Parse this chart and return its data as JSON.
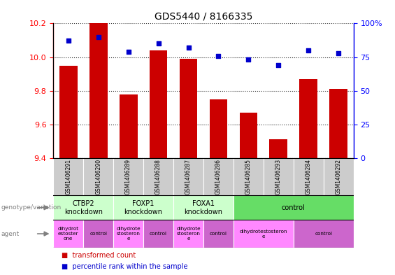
{
  "title": "GDS5440 / 8166335",
  "samples": [
    "GSM1406291",
    "GSM1406290",
    "GSM1406289",
    "GSM1406288",
    "GSM1406287",
    "GSM1406286",
    "GSM1406285",
    "GSM1406293",
    "GSM1406284",
    "GSM1406292"
  ],
  "transformed_count": [
    9.95,
    10.2,
    9.78,
    10.04,
    9.99,
    9.75,
    9.67,
    9.51,
    9.87,
    9.81
  ],
  "percentile_rank": [
    87,
    90,
    79,
    85,
    82,
    76,
    73,
    69,
    80,
    78
  ],
  "ylim": [
    9.4,
    10.2
  ],
  "yticks": [
    9.4,
    9.6,
    9.8,
    10.0,
    10.2
  ],
  "right_ylim": [
    0,
    100
  ],
  "right_yticks": [
    0,
    25,
    50,
    75,
    100
  ],
  "right_yticklabels": [
    "0",
    "25",
    "50",
    "75",
    "100%"
  ],
  "bar_color": "#cc0000",
  "scatter_color": "#0000cc",
  "cell_color": "#cccccc",
  "genotype_groups": [
    {
      "label": "CTBP2\nknockdown",
      "start": 0,
      "end": 2,
      "color": "#ccffcc"
    },
    {
      "label": "FOXP1\nknockdown",
      "start": 2,
      "end": 4,
      "color": "#ccffcc"
    },
    {
      "label": "FOXA1\nknockdown",
      "start": 4,
      "end": 6,
      "color": "#ccffcc"
    },
    {
      "label": "control",
      "start": 6,
      "end": 10,
      "color": "#66dd66"
    }
  ],
  "agent_groups": [
    {
      "label": "dihydrot\nestoster\none",
      "start": 0,
      "end": 1,
      "color": "#ff88ff"
    },
    {
      "label": "control",
      "start": 1,
      "end": 2,
      "color": "#cc66cc"
    },
    {
      "label": "dihydrote\nstosteron\ne",
      "start": 2,
      "end": 3,
      "color": "#ff88ff"
    },
    {
      "label": "control",
      "start": 3,
      "end": 4,
      "color": "#cc66cc"
    },
    {
      "label": "dihydrote\nstosteron\ne",
      "start": 4,
      "end": 5,
      "color": "#ff88ff"
    },
    {
      "label": "control",
      "start": 5,
      "end": 6,
      "color": "#cc66cc"
    },
    {
      "label": "dihydrotestosteron\ne",
      "start": 6,
      "end": 8,
      "color": "#ff88ff"
    },
    {
      "label": "control",
      "start": 8,
      "end": 10,
      "color": "#cc66cc"
    }
  ]
}
